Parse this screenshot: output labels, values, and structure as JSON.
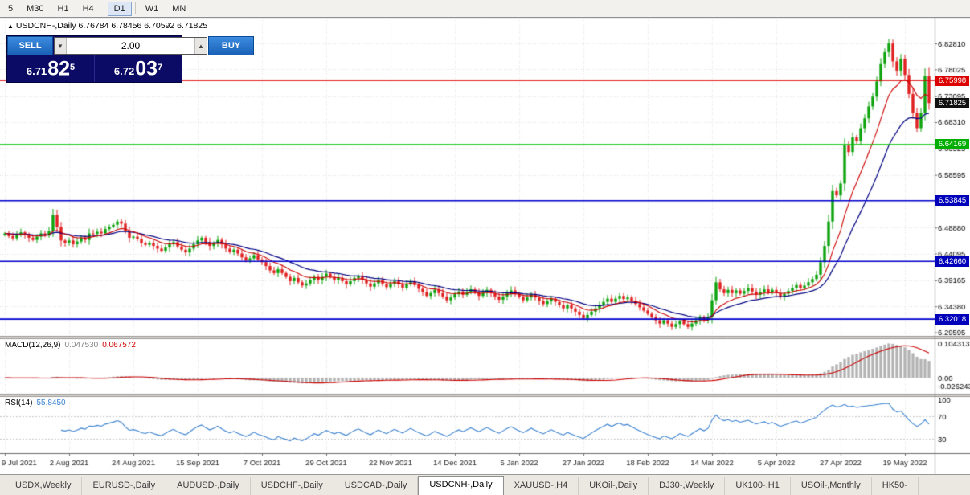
{
  "toolbar": {
    "timeframes": [
      {
        "label": "5",
        "active": false
      },
      {
        "label": "M30",
        "active": false
      },
      {
        "label": "H1",
        "active": false
      },
      {
        "label": "H4",
        "active": false
      },
      {
        "label": "D1",
        "active": true
      },
      {
        "label": "W1",
        "active": false
      },
      {
        "label": "MN",
        "active": false
      }
    ]
  },
  "chart_header": {
    "marker": "▲",
    "title": "USDCNH-,Daily 6.76784 6.78456 6.70592 6.71825"
  },
  "trade_panel": {
    "sell_label": "SELL",
    "buy_label": "BUY",
    "lot_size": "2.00",
    "sell_price": {
      "main": "6.71",
      "pips": "82",
      "point": "5"
    },
    "buy_price": {
      "main": "6.72",
      "pips": "03",
      "point": "7"
    }
  },
  "tabs": {
    "items": [
      "USDX,Weekly",
      "EURUSD-,Daily",
      "AUDUSD-,Daily",
      "USDCHF-,Daily",
      "USDCAD-,Daily",
      "USDCNH-,Daily",
      "XAUUSD-,H4",
      "UKOil-,Daily",
      "DJ30-,Weekly",
      "UK100-,H1",
      "USOil-,Monthly",
      "HK50-"
    ],
    "active": "USDCNH-,Daily"
  },
  "chart_data": {
    "type": "candlestick",
    "symbol": "USDCNH-",
    "timeframe": "Daily",
    "last_bar": {
      "open": 6.76784,
      "high": 6.78456,
      "low": 6.70592,
      "close": 6.71825
    },
    "current_price": "6.71825",
    "price_axis_labels": [
      "6.82810",
      "6.78025",
      "6.73095",
      "6.68310",
      "6.63525",
      "6.58595",
      "6.48880",
      "6.44095",
      "6.39165",
      "6.34380",
      "6.29595"
    ],
    "x_labels": [
      "9 Jul 2021",
      "2 Aug 2021",
      "24 Aug 2021",
      "15 Sep 2021",
      "7 Oct 2021",
      "29 Oct 2021",
      "22 Nov 2021",
      "14 Dec 2021",
      "5 Jan 2022",
      "27 Jan 2022",
      "18 Feb 2022",
      "14 Mar 2022",
      "5 Apr 2022",
      "27 Apr 2022",
      "19 May 2022"
    ],
    "bars_per_label": 16,
    "price_range": {
      "top": 6.8755,
      "bottom": 6.2893
    },
    "horizontal_lines": [
      {
        "price": 6.75998,
        "label": "6.75998",
        "color": "#dd0000",
        "badge": "#dd0000"
      },
      {
        "price": 6.64169,
        "label": "6.64169",
        "color": "#00c000",
        "badge": "#00ae00"
      },
      {
        "price": 6.53845,
        "label": "6.53845",
        "color": "#0000cc",
        "badge": "#0000bb"
      },
      {
        "price": 6.4266,
        "label": "6.42660",
        "color": "#0000cc",
        "badge": "#0000bb"
      },
      {
        "price": 6.32018,
        "label": "6.32018",
        "color": "#0000cc",
        "badge": "#0000bb"
      }
    ],
    "colors": {
      "up": "#0ea30e",
      "down": "#e02020",
      "ma_fast": "#cc0000",
      "ma_slow": "#000080",
      "macd_hist": "#b4b4b4",
      "macd_signal": "#cc0000",
      "rsi_line": "#3b82d0"
    },
    "ma_fast_period": 10,
    "ma_slow_period": 21,
    "closes": [
      6.478,
      6.473,
      6.469,
      6.475,
      6.48,
      6.476,
      6.47,
      6.466,
      6.472,
      6.478,
      6.474,
      6.482,
      6.512,
      6.49,
      6.465,
      6.461,
      6.465,
      6.458,
      6.463,
      6.47,
      6.466,
      6.478,
      6.477,
      6.481,
      6.478,
      6.486,
      6.49,
      6.494,
      6.5,
      6.496,
      6.482,
      6.47,
      6.472,
      6.468,
      6.46,
      6.457,
      6.461,
      6.455,
      6.45,
      6.446,
      6.452,
      6.458,
      6.462,
      6.454,
      6.448,
      6.443,
      6.45,
      6.458,
      6.465,
      6.47,
      6.462,
      6.455,
      6.46,
      6.466,
      6.458,
      6.45,
      6.444,
      6.448,
      6.441,
      6.434,
      6.428,
      6.432,
      6.438,
      6.43,
      6.425,
      6.418,
      6.41,
      6.405,
      6.412,
      6.405,
      6.398,
      6.39,
      6.396,
      6.388,
      6.382,
      6.386,
      6.392,
      6.398,
      6.392,
      6.398,
      6.404,
      6.398,
      6.392,
      6.396,
      6.39,
      6.384,
      6.39,
      6.396,
      6.4,
      6.393,
      6.386,
      6.38,
      6.386,
      6.392,
      6.385,
      6.379,
      6.385,
      6.39,
      6.384,
      6.378,
      6.384,
      6.39,
      6.383,
      6.376,
      6.37,
      6.363,
      6.368,
      6.374,
      6.368,
      6.362,
      6.355,
      6.36,
      6.366,
      6.371,
      6.365,
      6.37,
      6.375,
      6.369,
      6.363,
      6.369,
      6.374,
      6.368,
      6.362,
      6.356,
      6.362,
      6.368,
      6.373,
      6.367,
      6.361,
      6.355,
      6.36,
      6.366,
      6.36,
      6.354,
      6.348,
      6.353,
      6.358,
      6.352,
      6.346,
      6.34,
      6.346,
      6.34,
      6.334,
      6.328,
      6.322,
      6.328,
      6.334,
      6.34,
      6.346,
      6.352,
      6.358,
      6.352,
      6.358,
      6.363,
      6.357,
      6.36,
      6.354,
      6.348,
      6.342,
      6.336,
      6.33,
      6.324,
      6.318,
      6.312,
      6.318,
      6.312,
      6.306,
      6.311,
      6.317,
      6.311,
      6.306,
      6.312,
      6.318,
      6.324,
      6.318,
      6.324,
      6.355,
      6.388,
      6.375,
      6.368,
      6.374,
      6.368,
      6.373,
      6.367,
      6.372,
      6.377,
      6.371,
      6.365,
      6.37,
      6.375,
      6.369,
      6.374,
      6.368,
      6.362,
      6.367,
      6.372,
      6.378,
      6.383,
      6.377,
      6.382,
      6.388,
      6.394,
      6.402,
      6.425,
      6.455,
      6.5,
      6.556,
      6.548,
      6.57,
      6.64,
      6.628,
      6.655,
      6.648,
      6.672,
      6.69,
      6.712,
      6.73,
      6.758,
      6.79,
      6.812,
      6.828,
      6.795,
      6.778,
      6.8,
      6.77,
      6.735,
      6.7,
      6.672,
      6.7,
      6.768,
      6.71825
    ],
    "macd": {
      "label": "MACD(12,26,9)",
      "value_main": "0.047530",
      "value_signal": "0.067572",
      "axis_labels": [
        "0.104313",
        "0.00",
        "-0.026243"
      ],
      "params": [
        12,
        26,
        9
      ]
    },
    "rsi": {
      "label": "RSI(14)",
      "value": "55.8450",
      "period": 14,
      "levels": [
        100,
        70,
        30
      ]
    }
  }
}
